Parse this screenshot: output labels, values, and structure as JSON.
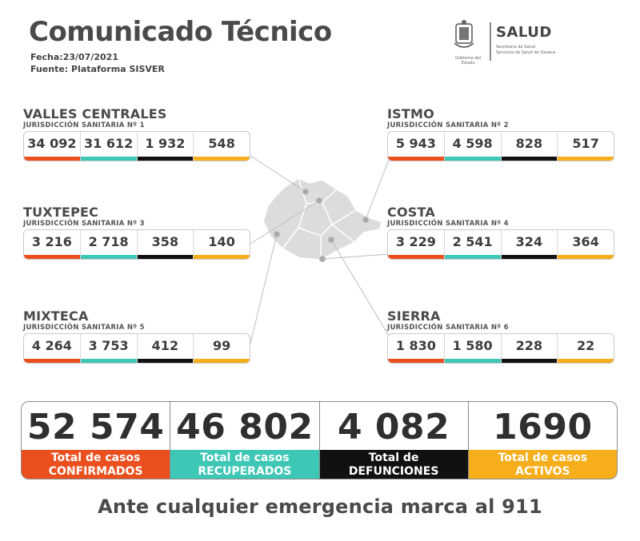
{
  "header": {
    "title": "Comunicado Técnico",
    "date": "Fecha:23/07/2021",
    "source": "Fuente: Plataforma SISVER"
  },
  "logo": {
    "seal_icon": "oaxaca-coat-of-arms",
    "seal_caption": "Gobierno del Estado",
    "main": "SALUD",
    "sub1": "Secretaría de Salud",
    "sub2": "Servicios de Salud de Oaxaca"
  },
  "colors": {
    "confirmed": "#ea4f1e",
    "recovered": "#3fc7b6",
    "deaths": "#111111",
    "active": "#f7ae1b"
  },
  "regions": [
    {
      "name": "VALLES CENTRALES",
      "jurisdiction": "JURISDICCIÓN SANITARIA Nº 1",
      "values": [
        "34 092",
        "31 612",
        "1 932",
        "548"
      ]
    },
    {
      "name": "ISTMO",
      "jurisdiction": "JURISDICCIÓN SANITARIA Nº 2",
      "values": [
        "5 943",
        "4 598",
        "828",
        "517"
      ]
    },
    {
      "name": "TUXTEPEC",
      "jurisdiction": "JURISDICCIÓN SANITARIA Nº 3",
      "values": [
        "3 216",
        "2 718",
        "358",
        "140"
      ]
    },
    {
      "name": "COSTA",
      "jurisdiction": "JURISDICCIÓN SANITARIA Nº 4",
      "values": [
        "3 229",
        "2 541",
        "324",
        "364"
      ]
    },
    {
      "name": "MIXTECA",
      "jurisdiction": "JURISDICCIÓN SANITARIA Nº 5",
      "values": [
        "4 264",
        "3 753",
        "412",
        "99"
      ]
    },
    {
      "name": "SIERRA",
      "jurisdiction": "JURISDICCIÓN SANITARIA Nº 6",
      "values": [
        "1 830",
        "1 580",
        "228",
        "22"
      ]
    }
  ],
  "totals": [
    {
      "value": "52 574",
      "line1": "Total de casos",
      "line2": "CONFIRMADOS"
    },
    {
      "value": "46 802",
      "line1": "Total de casos",
      "line2": "RECUPERADOS"
    },
    {
      "value": "4 082",
      "line1": "Total de",
      "line2": "DEFUNCIONES"
    },
    {
      "value": "1690",
      "line1": "Total de casos",
      "line2": "ACTIVOS"
    }
  ],
  "footer": "Ante cualquier emergencia marca al 911"
}
